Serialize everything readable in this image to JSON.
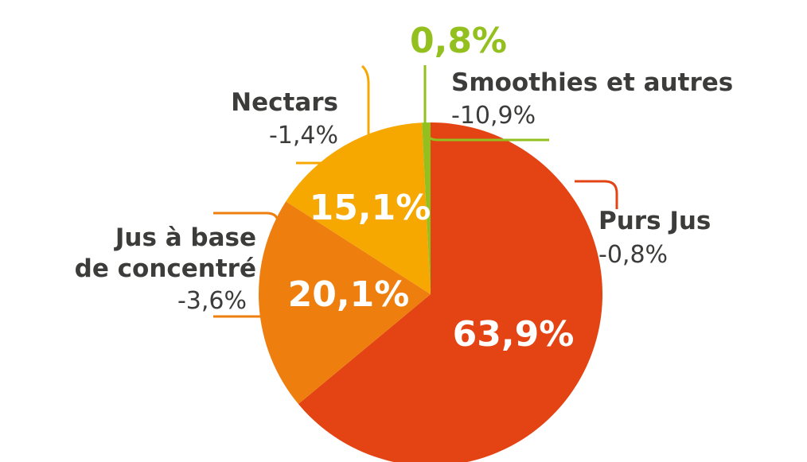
{
  "chart_data": {
    "type": "pie",
    "start_angle_deg": 0,
    "direction": "clockwise",
    "slices": [
      {
        "name": "Purs Jus",
        "share_label": "63,9%",
        "value": 63.9,
        "change": "-0,8%",
        "color": "#e44314"
      },
      {
        "name_lines": [
          "Jus à base",
          "de concentré"
        ],
        "share_label": "20,1%",
        "value": 20.1,
        "change": "-3,6%",
        "color": "#ee7f0f"
      },
      {
        "name": "Nectars",
        "share_label": "15,1%",
        "value": 15.1,
        "change": "-1,4%",
        "color": "#f6a800"
      },
      {
        "name": "Smoothies et autres",
        "share_label": "0,8%",
        "value": 0.8,
        "change": "-10,9%",
        "color": "#93c01f"
      }
    ]
  }
}
